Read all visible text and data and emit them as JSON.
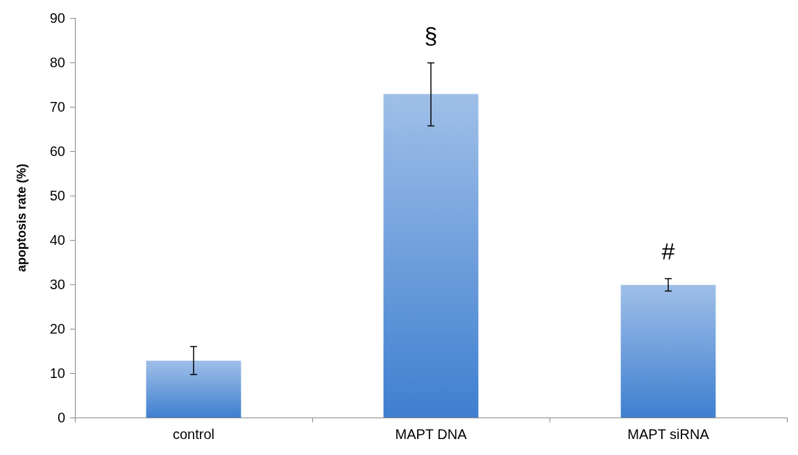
{
  "chart_data": {
    "type": "bar",
    "ylabel": "apoptosis rate (%)",
    "categories": [
      "control",
      "MAPT DNA",
      "MAPT siRNA"
    ],
    "values": [
      12.8,
      72.9,
      29.9
    ],
    "errors": [
      [
        9.7,
        16.0
      ],
      [
        65.7,
        79.9
      ],
      [
        28.5,
        31.3
      ]
    ],
    "color": "#3f7fd0",
    "ylim": [
      0,
      90
    ],
    "yticks": [
      0,
      10,
      20,
      30,
      40,
      50,
      60,
      70,
      80,
      90
    ],
    "grid": false,
    "annotations": [
      "§",
      "#"
    ]
  }
}
